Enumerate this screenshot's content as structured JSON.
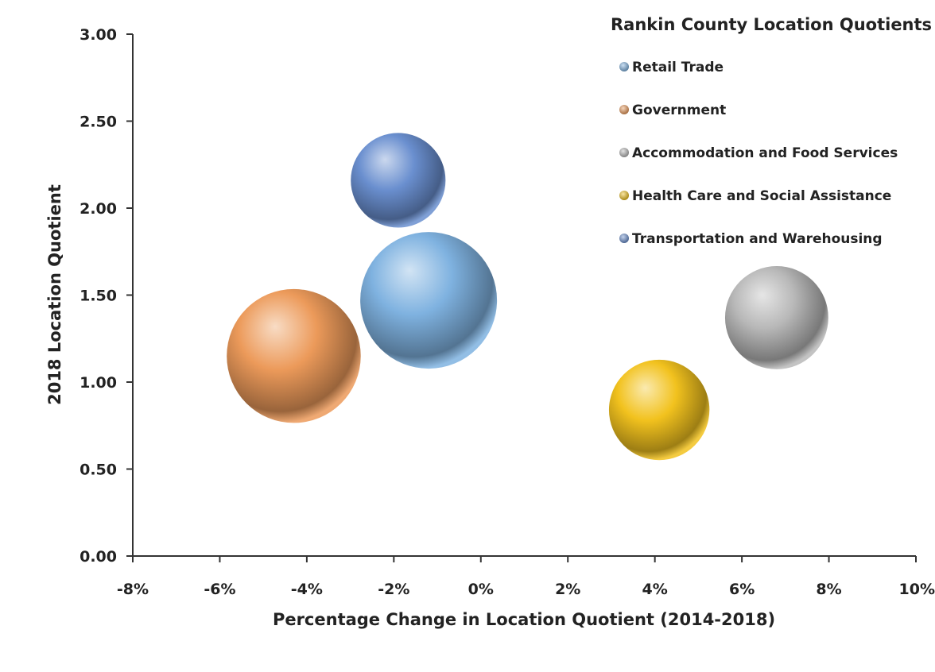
{
  "chart_data": {
    "type": "bubble",
    "title": "Rankin County Location Quotients",
    "xlabel": "Percentage Change in Location Quotient (2014-2018)",
    "ylabel": "2018 Location Quotient",
    "xlim": [
      -0.08,
      0.1
    ],
    "ylim": [
      0,
      3.0
    ],
    "x_ticks": [
      -0.08,
      -0.06,
      -0.04,
      -0.02,
      0,
      0.02,
      0.04,
      0.06,
      0.08,
      0.1
    ],
    "x_tick_labels": [
      "-8%",
      "-6%",
      "-4%",
      "-2%",
      "0%",
      "2%",
      "4%",
      "6%",
      "8%",
      "10%"
    ],
    "y_ticks": [
      0,
      0.5,
      1.0,
      1.5,
      2.0,
      2.5,
      3.0
    ],
    "y_tick_labels": [
      "0.00",
      "0.50",
      "1.00",
      "1.50",
      "2.00",
      "2.50",
      "3.00"
    ],
    "grid": false,
    "legend_position": "top-right",
    "series": [
      {
        "name": "Retail Trade",
        "x": -0.012,
        "y": 1.47,
        "size": 1.0,
        "color": "#7fb2e0"
      },
      {
        "name": "Government",
        "x": -0.043,
        "y": 1.15,
        "size": 0.96,
        "color": "#ec9a5a"
      },
      {
        "name": "Accommodation and Food Services",
        "x": 0.068,
        "y": 1.37,
        "size": 0.57,
        "color": "#b8b8b8"
      },
      {
        "name": "Health Care and Social Assistance",
        "x": 0.041,
        "y": 0.84,
        "size": 0.54,
        "color": "#f2c21e"
      },
      {
        "name": "Transportation and Warehousing",
        "x": -0.019,
        "y": 2.16,
        "size": 0.48,
        "color": "#6a8fcf"
      }
    ]
  }
}
